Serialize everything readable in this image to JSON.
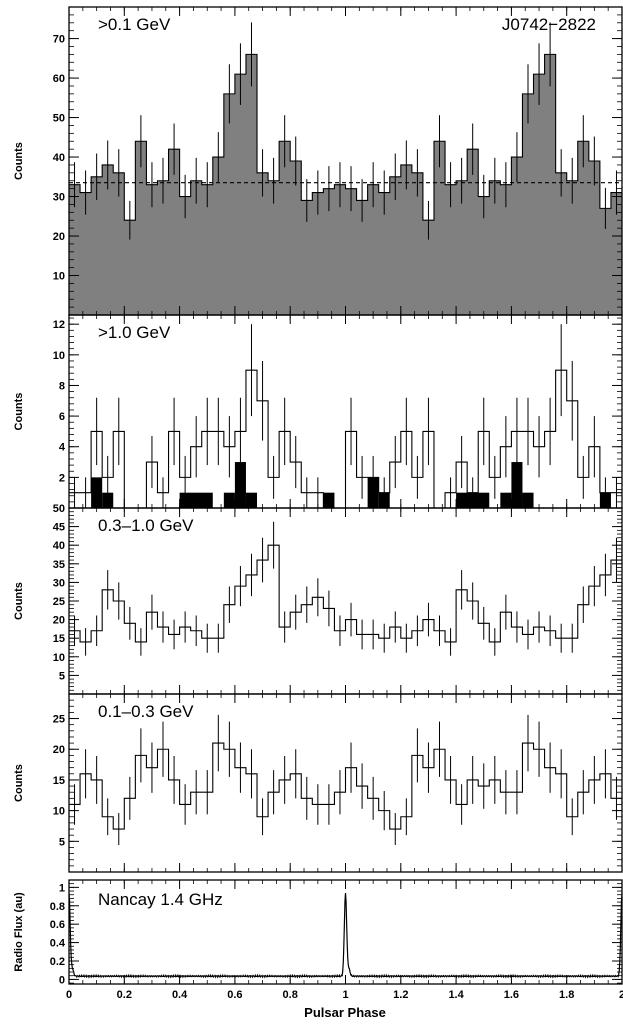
{
  "chart_data": [
    {
      "type": "histogram",
      "label": ">0.1 GeV",
      "source_label": "J0742−2822",
      "ylabel": "Counts",
      "ylim": [
        0,
        78
      ],
      "yticks": [
        10,
        20,
        30,
        40,
        50,
        60,
        70
      ],
      "fill_color": "#808080",
      "baseline": 33.5,
      "bin_width": 0.04,
      "values": [
        33,
        31,
        35,
        38,
        36,
        24,
        44,
        33,
        34,
        42,
        30,
        34,
        33,
        40,
        56,
        61,
        66,
        36,
        34,
        44,
        39,
        29,
        31,
        32,
        33,
        32,
        29,
        33,
        31,
        35,
        38,
        36,
        24,
        44,
        33,
        34,
        42,
        30,
        34,
        33,
        40,
        56,
        61,
        66,
        36,
        34,
        44,
        39,
        27,
        31,
        32,
        33,
        28
      ],
      "errors": [
        5.7,
        5.6,
        5.9,
        6.2,
        6.0,
        4.9,
        6.6,
        5.7,
        5.8,
        6.5,
        5.5,
        5.8,
        5.7,
        6.3,
        7.5,
        7.8,
        8.1,
        6.0,
        5.8,
        6.6,
        6.2,
        5.4,
        5.6,
        5.7,
        5.7,
        5.7,
        5.4,
        5.7,
        5.6,
        5.9,
        6.2,
        6.0,
        4.9,
        6.6,
        5.7,
        5.8,
        6.5,
        5.5,
        5.8,
        5.7,
        6.3,
        7.5,
        7.8,
        8.1,
        6.0,
        5.8,
        6.6,
        6.2,
        5.2,
        5.6,
        5.7,
        5.7,
        5.3
      ]
    },
    {
      "type": "histogram",
      "label": ">1.0 GeV",
      "ylabel": "Counts",
      "ylim": [
        0,
        12.6
      ],
      "yticks": [
        2,
        4,
        6,
        8,
        10,
        12
      ],
      "bin_width": 0.04,
      "values": [
        1,
        1,
        5,
        2,
        5,
        0,
        0,
        3,
        1,
        5,
        2,
        4,
        5,
        5,
        4,
        5,
        9,
        7,
        2,
        5,
        3,
        1,
        1,
        0,
        0,
        5,
        2,
        2,
        1,
        3,
        5,
        2,
        5,
        0,
        1,
        3,
        1,
        5,
        2,
        4,
        5,
        5,
        4,
        5,
        9,
        7,
        2,
        4,
        1,
        1,
        1,
        0,
        5,
        1
      ],
      "errors": [
        1,
        1,
        2.2,
        1.4,
        2.2,
        0,
        0,
        1.7,
        1,
        2.2,
        1.4,
        2,
        2.2,
        2.2,
        2,
        2.2,
        3,
        2.6,
        1.4,
        2.2,
        1.7,
        1,
        1,
        0,
        0,
        2.2,
        1.4,
        1.4,
        1,
        1.7,
        2.2,
        1.4,
        2.2,
        0,
        1,
        1.7,
        1,
        2.2,
        1.4,
        2,
        2.2,
        2.2,
        2,
        2.2,
        3,
        2.6,
        1.4,
        2,
        1,
        1,
        1,
        0,
        2.2,
        1
      ],
      "black_bars": [
        {
          "x0": 0.08,
          "x1": 0.12,
          "value": 2
        },
        {
          "x0": 0.12,
          "x1": 0.16,
          "value": 1
        },
        {
          "x0": 0.4,
          "x1": 0.52,
          "value": 1
        },
        {
          "x0": 0.56,
          "x1": 0.6,
          "value": 1
        },
        {
          "x0": 0.6,
          "x1": 0.64,
          "value": 3
        },
        {
          "x0": 0.64,
          "x1": 0.68,
          "value": 1
        },
        {
          "x0": 0.92,
          "x1": 0.96,
          "value": 1
        },
        {
          "x0": 1.08,
          "x1": 1.12,
          "value": 2
        },
        {
          "x0": 1.12,
          "x1": 1.16,
          "value": 1
        },
        {
          "x0": 1.4,
          "x1": 1.52,
          "value": 1
        },
        {
          "x0": 1.56,
          "x1": 1.6,
          "value": 1
        },
        {
          "x0": 1.6,
          "x1": 1.64,
          "value": 3
        },
        {
          "x0": 1.64,
          "x1": 1.68,
          "value": 1
        },
        {
          "x0": 1.92,
          "x1": 1.96,
          "value": 1
        }
      ]
    },
    {
      "type": "histogram",
      "label": "0.3–1.0 GeV",
      "ylabel": "Counts",
      "ylim": [
        0,
        50
      ],
      "yticks": [
        5,
        10,
        15,
        20,
        25,
        30,
        35,
        40,
        45,
        50
      ],
      "bin_width": 0.04,
      "values": [
        17,
        14,
        17,
        28,
        25,
        19,
        14,
        22,
        18,
        16,
        18,
        17,
        15,
        15,
        24,
        29,
        32,
        36,
        40,
        18,
        22,
        24,
        26,
        23,
        17,
        20,
        16,
        16,
        15,
        18,
        15,
        17,
        20,
        17,
        14,
        28,
        25,
        19,
        14,
        22,
        18,
        16,
        18,
        17,
        15,
        15,
        24,
        29,
        32,
        36,
        40,
        18,
        22,
        24
      ],
      "errors": [
        4.1,
        3.7,
        4.1,
        5.3,
        5.0,
        4.4,
        3.7,
        4.7,
        4.2,
        4.0,
        4.2,
        4.1,
        3.9,
        3.9,
        4.9,
        5.4,
        5.7,
        6.0,
        6.3,
        4.2,
        4.7,
        4.9,
        5.1,
        4.8,
        4.1,
        4.5,
        4.0,
        4.0,
        3.9,
        4.2,
        3.9,
        4.1,
        4.5,
        4.1,
        3.7,
        5.3,
        5.0,
        4.4,
        3.7,
        4.7,
        4.2,
        4.0,
        4.2,
        4.1,
        3.9,
        3.9,
        4.9,
        5.4,
        5.7,
        6.0,
        6.3,
        4.2,
        4.7,
        4.9
      ]
    },
    {
      "type": "histogram",
      "label": "0.1–0.3 GeV",
      "ylabel": "Counts",
      "ylim": [
        0,
        29
      ],
      "yticks": [
        5,
        10,
        15,
        20,
        25
      ],
      "bin_width": 0.04,
      "values": [
        11,
        16,
        15,
        9,
        7,
        12,
        19,
        17,
        20,
        15,
        11,
        13,
        13,
        21,
        20,
        17,
        16,
        9,
        13,
        15,
        16,
        12,
        11,
        11,
        13,
        17,
        14,
        12,
        10,
        7,
        9,
        19,
        17,
        20,
        15,
        11,
        15,
        14,
        15,
        13,
        13,
        21,
        20,
        17,
        16,
        9,
        13,
        15,
        16,
        12,
        11,
        15,
        11
      ],
      "errors": [
        3.3,
        4.0,
        3.9,
        3.0,
        2.6,
        3.5,
        4.4,
        4.1,
        4.5,
        3.9,
        3.3,
        3.6,
        3.6,
        4.6,
        4.5,
        4.1,
        4.0,
        3.0,
        3.6,
        3.9,
        4.0,
        3.5,
        3.3,
        3.3,
        3.6,
        4.1,
        3.7,
        3.5,
        3.2,
        2.6,
        3.0,
        4.4,
        4.1,
        4.5,
        3.9,
        3.3,
        3.9,
        3.7,
        3.9,
        3.6,
        3.6,
        4.6,
        4.5,
        4.1,
        4.0,
        3.0,
        3.6,
        3.9,
        4.0,
        3.5,
        3.3,
        3.9,
        3.3
      ]
    },
    {
      "type": "line",
      "label": "Nancay 1.4 GHz",
      "ylabel": "Radio Flux (au)",
      "ylim": [
        -0.05,
        1.08
      ],
      "yticks": [
        0,
        0.2,
        0.4,
        0.6,
        0.8,
        1
      ],
      "ytick_labels": [
        "0",
        "0.2",
        "0.4",
        "0.6",
        "0.8",
        "1"
      ],
      "pulse_phase": 1.0,
      "pulse_peak": 1.0
    }
  ],
  "x_axis": {
    "title": "Pulsar Phase",
    "range": [
      0,
      2
    ],
    "ticks": [
      0,
      0.2,
      0.4,
      0.6,
      0.8,
      1,
      1.2,
      1.4,
      1.6,
      1.8,
      2
    ],
    "tick_labels": [
      "0",
      "0.2",
      "0.4",
      "0.6",
      "0.8",
      "1",
      "1.2",
      "1.4",
      "1.6",
      "1.8",
      "2"
    ]
  }
}
